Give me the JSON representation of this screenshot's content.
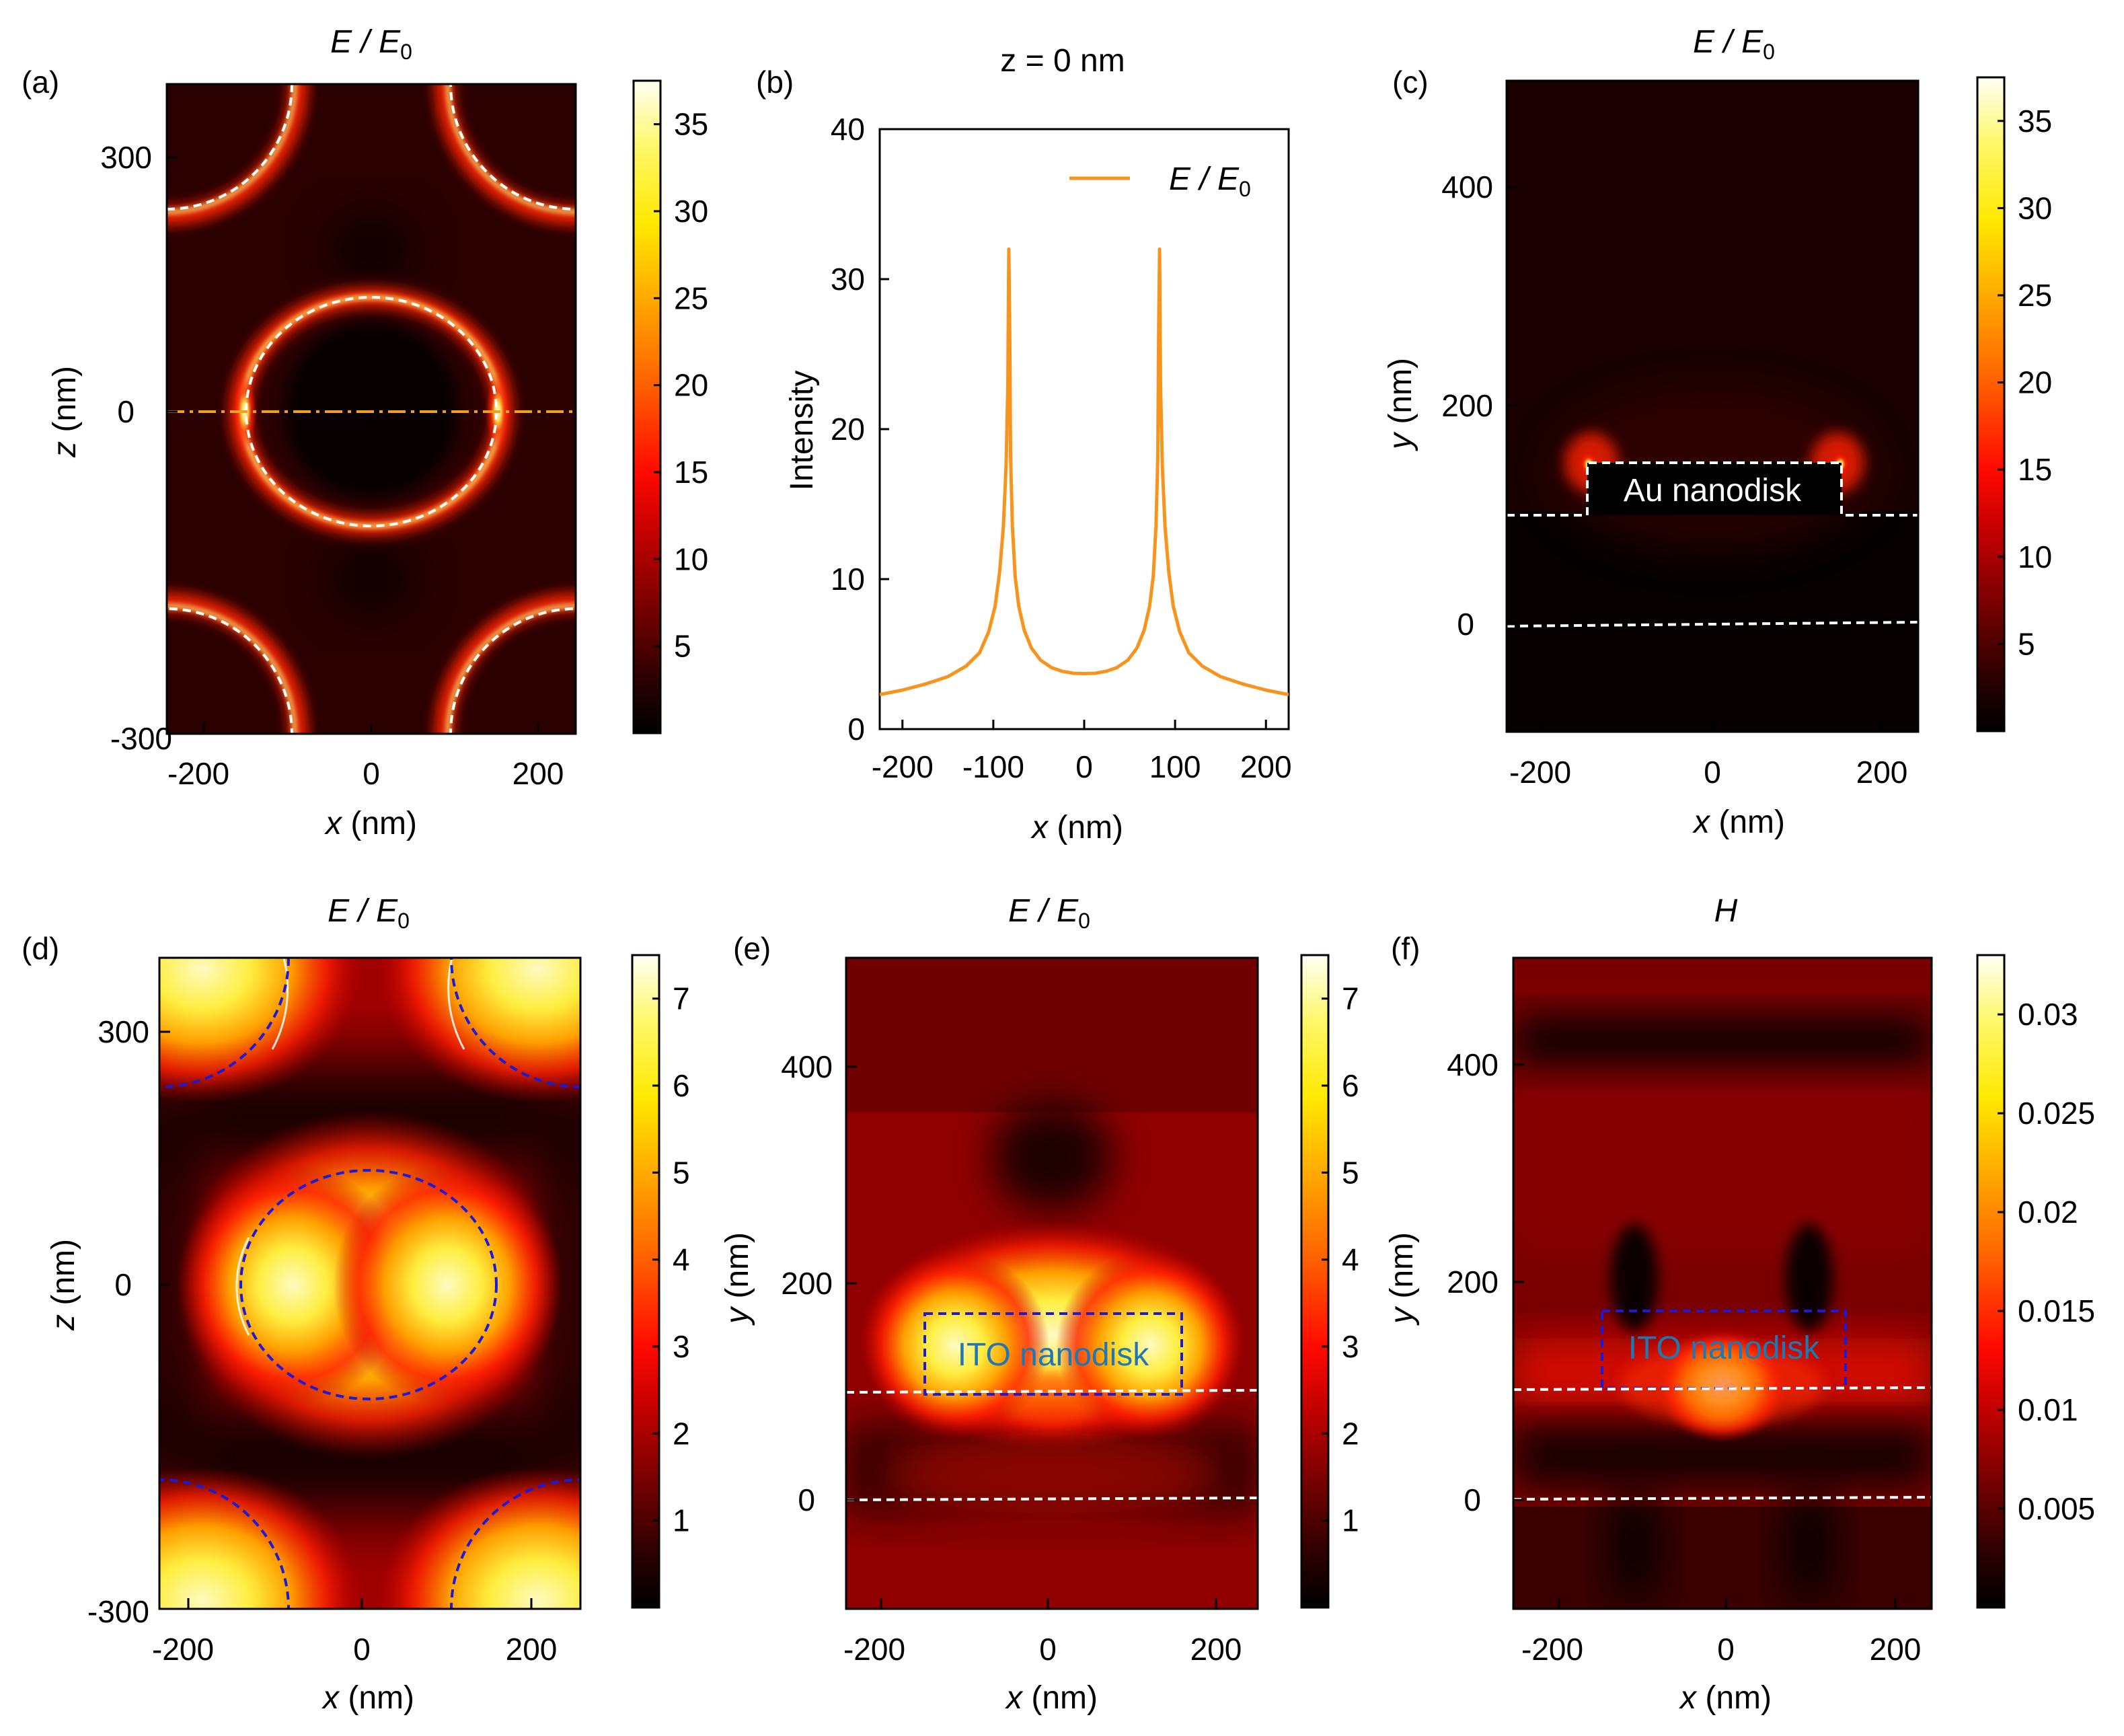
{
  "figure": {
    "description": "Six-panel field-enhancement figure"
  },
  "colors": {
    "line": "#f7941d",
    "white_dash": "#ffffff",
    "blue_dash": "#1a1adb",
    "dashdot": "#f0a020",
    "ito_text": "#1f78b4",
    "au_text": "#ffffff"
  },
  "chart_data": [
    {
      "id": "a",
      "type": "heatmap",
      "label": "(a)",
      "title_main": "E / E",
      "title_sub": "0",
      "xlabel_var": "x",
      "xlabel_unit": " (nm)",
      "ylabel_var": "z",
      "ylabel_unit": " (nm)",
      "xlim": [
        -235,
        235
      ],
      "ylim": [
        -300,
        400
      ],
      "xticks": [
        -200,
        0,
        200
      ],
      "yticks": [
        -300,
        0,
        300
      ],
      "colorbar": {
        "min": 0,
        "max": 37.5,
        "ticks": [
          5,
          10,
          15,
          20,
          25,
          30,
          35
        ]
      },
      "annotations": []
    },
    {
      "id": "b",
      "type": "line",
      "label": "(b)",
      "title": "z = 0 nm",
      "xlabel_var": "x",
      "xlabel_unit": " (nm)",
      "ylabel": "Intensity",
      "xlim": [
        -225,
        225
      ],
      "ylim": [
        0,
        40
      ],
      "xticks": [
        -200,
        -100,
        0,
        100,
        200
      ],
      "yticks": [
        0,
        10,
        20,
        30,
        40
      ],
      "legend_main": "E / E",
      "legend_sub": "0",
      "series": [
        {
          "name": "E / E0",
          "x": [
            -225,
            -200,
            -175,
            -150,
            -130,
            -115,
            -105,
            -98,
            -93,
            -89,
            -86,
            -84,
            -83,
            -82,
            -81,
            -79,
            -76,
            -72,
            -66,
            -58,
            -48,
            -36,
            -24,
            -12,
            0,
            12,
            24,
            36,
            48,
            58,
            66,
            72,
            76,
            79,
            81,
            82,
            83,
            84,
            86,
            89,
            93,
            98,
            105,
            115,
            130,
            150,
            175,
            200,
            225
          ],
          "y": [
            2.3,
            2.6,
            3.0,
            3.5,
            4.2,
            5.1,
            6.5,
            8.2,
            10.5,
            13.5,
            17.5,
            23,
            32,
            27,
            18,
            13.5,
            10.2,
            8.2,
            6.6,
            5.4,
            4.6,
            4.1,
            3.85,
            3.72,
            3.7,
            3.72,
            3.85,
            4.1,
            4.6,
            5.4,
            6.6,
            8.2,
            10.2,
            13.5,
            18,
            27,
            32,
            23,
            17.5,
            13.5,
            10.5,
            8.2,
            6.5,
            5.1,
            4.2,
            3.5,
            3.0,
            2.6,
            2.3
          ]
        }
      ]
    },
    {
      "id": "c",
      "type": "heatmap",
      "label": "(c)",
      "title_main": "E / E",
      "title_sub": "0",
      "xlabel_var": "x",
      "xlabel_unit": " (nm)",
      "ylabel_var": "y",
      "ylabel_unit": " (nm)",
      "xlim": [
        -235,
        235
      ],
      "ylim": [
        -100,
        500
      ],
      "xticks": [
        -200,
        0,
        200
      ],
      "yticks": [
        0,
        200,
        400
      ],
      "colorbar": {
        "min": 0,
        "max": 37.5,
        "ticks": [
          5,
          10,
          15,
          20,
          25,
          30,
          35
        ]
      },
      "annotations": [
        {
          "text": "Au nanodisk"
        }
      ]
    },
    {
      "id": "d",
      "type": "heatmap",
      "label": "(d)",
      "title_main": "E / E",
      "title_sub": "0",
      "xlabel_var": "x",
      "xlabel_unit": " (nm)",
      "ylabel_var": "z",
      "ylabel_unit": " (nm)",
      "xlim": [
        -235,
        250
      ],
      "ylim": [
        -300,
        400
      ],
      "xticks": [
        -200,
        0,
        200
      ],
      "yticks": [
        -300,
        0,
        300
      ],
      "colorbar": {
        "min": 0,
        "max": 7.5,
        "ticks": [
          1,
          2,
          3,
          4,
          5,
          6,
          7
        ]
      },
      "annotations": []
    },
    {
      "id": "e",
      "type": "heatmap",
      "label": "(e)",
      "title_main": "E / E",
      "title_sub": "0",
      "xlabel_var": "x",
      "xlabel_unit": " (nm)",
      "ylabel_var": "y",
      "ylabel_unit": " (nm)",
      "xlim": [
        -235,
        250
      ],
      "ylim": [
        -100,
        500
      ],
      "xticks": [
        -200,
        0,
        200
      ],
      "yticks": [
        0,
        200,
        400
      ],
      "colorbar": {
        "min": 0,
        "max": 7.5,
        "ticks": [
          1,
          2,
          3,
          4,
          5,
          6,
          7
        ]
      },
      "annotations": [
        {
          "text": "ITO nanodisk"
        }
      ]
    },
    {
      "id": "f",
      "type": "heatmap",
      "label": "(f)",
      "title_main": "H",
      "title_sub": "",
      "xlabel_var": "x",
      "xlabel_unit": " (nm)",
      "ylabel_var": "y",
      "ylabel_unit": " (nm)",
      "xlim": [
        -235,
        250
      ],
      "ylim": [
        -100,
        500
      ],
      "xticks": [
        -200,
        0,
        200
      ],
      "yticks": [
        0,
        200,
        400
      ],
      "colorbar": {
        "min": 0,
        "max": 0.033,
        "ticks": [
          0.005,
          0.01,
          0.015,
          0.02,
          0.025,
          0.03
        ]
      },
      "annotations": [
        {
          "text": "ITO nanodisk"
        }
      ]
    }
  ]
}
